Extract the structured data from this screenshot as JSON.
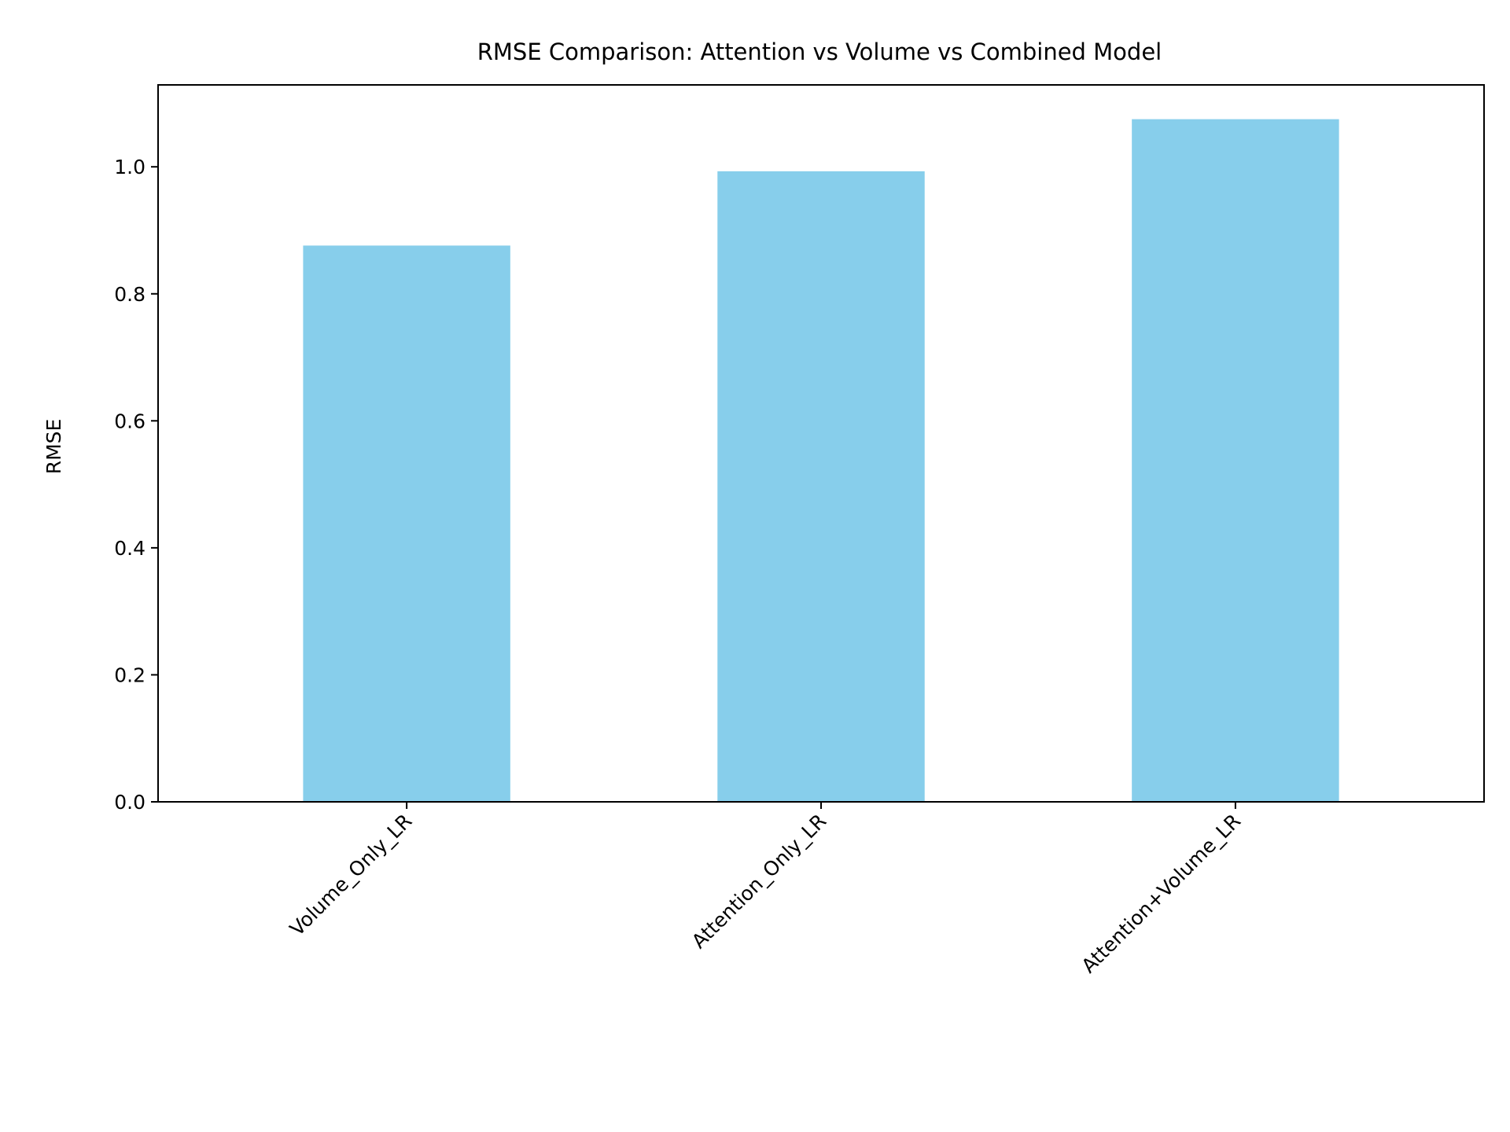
{
  "chart_data": {
    "type": "bar",
    "title": "RMSE Comparison: Attention vs Volume vs Combined Model",
    "xlabel": "",
    "ylabel": "RMSE",
    "categories": [
      "Volume_Only_LR",
      "Attention_Only_LR",
      "Attention+Volume_LR"
    ],
    "values": [
      0.876,
      0.993,
      1.075
    ],
    "ylim": [
      0,
      1.129
    ],
    "yticks": [
      0.0,
      0.2,
      0.4,
      0.6,
      0.8,
      1.0
    ],
    "ytick_labels": [
      "0.0",
      "0.2",
      "0.4",
      "0.6",
      "0.8",
      "1.0"
    ],
    "grid": false,
    "bar_color": "#87CEEB",
    "axis_color": "#000000"
  }
}
